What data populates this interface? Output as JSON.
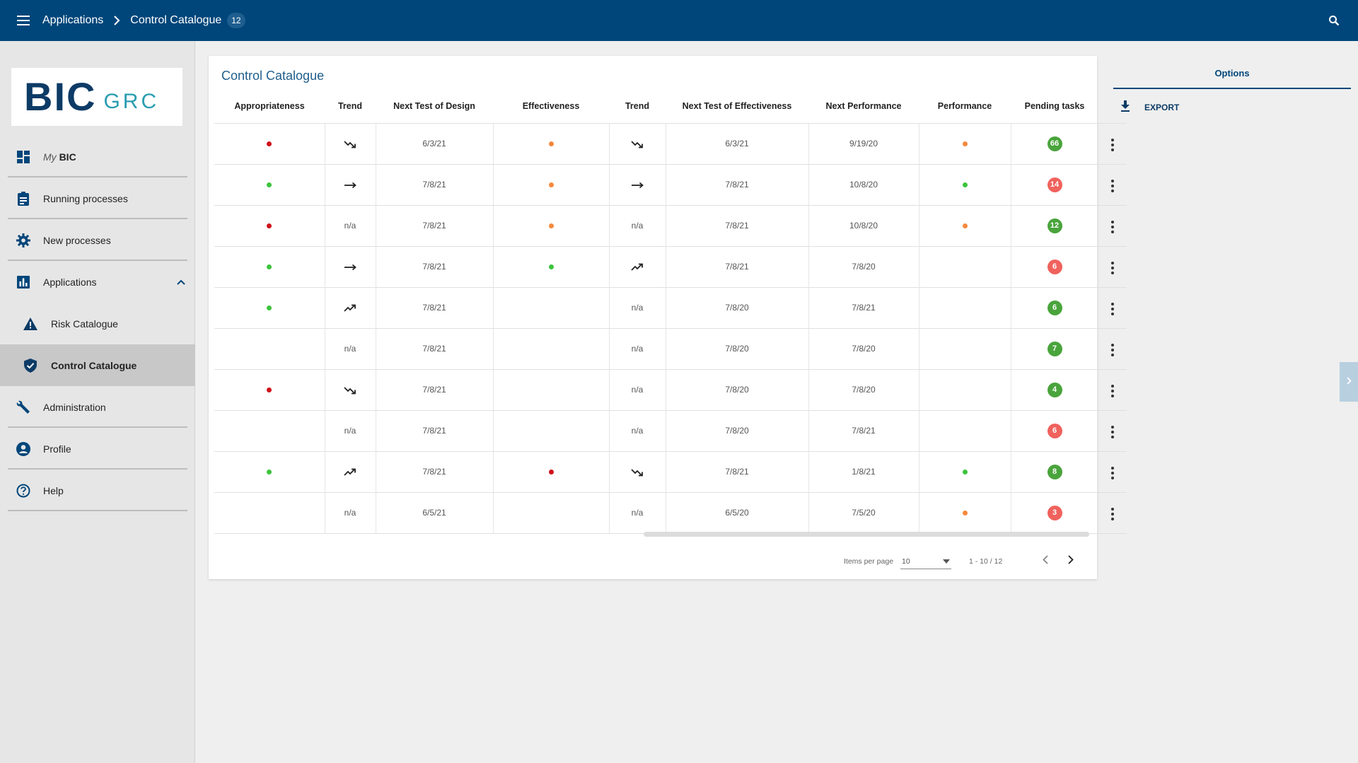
{
  "header": {
    "breadcrumb_root": "Applications",
    "breadcrumb_current": "Control Catalogue",
    "count": "12"
  },
  "logo": {
    "bic": "BIC",
    "grc": "GRC"
  },
  "sidebar": {
    "items": [
      {
        "prefix": "My",
        "label": "BIC",
        "icon": "dashboard-icon"
      },
      {
        "label": "Running processes",
        "icon": "clipboard-icon"
      },
      {
        "label": "New processes",
        "icon": "gear-icon"
      },
      {
        "label": "Applications",
        "icon": "bar-chart-icon"
      },
      {
        "label": "Risk Catalogue",
        "icon": "warning-triangle-icon"
      },
      {
        "label": "Control Catalogue",
        "icon": "shield-check-icon"
      },
      {
        "label": "Administration",
        "icon": "wrench-icon"
      },
      {
        "label": "Profile",
        "icon": "account-circle-icon"
      },
      {
        "label": "Help",
        "icon": "help-circle-icon"
      }
    ]
  },
  "card": {
    "title": "Control Catalogue",
    "columns": [
      "Appropriateness",
      "Trend",
      "Next Test of Design",
      "Effectiveness",
      "Trend",
      "Next Test of Effectiveness",
      "Next Performance",
      "Performance",
      "Pending tasks"
    ],
    "rows": [
      {
        "app": "red",
        "trend1": "down",
        "ntd": "6/3/21",
        "eff": "orange",
        "trend2": "down",
        "nte": "6/3/21",
        "np": "9/19/20",
        "perf": "orange",
        "tasks": "66",
        "tasks_color": "green"
      },
      {
        "app": "green",
        "trend1": "flat",
        "ntd": "7/8/21",
        "eff": "orange",
        "trend2": "flat",
        "nte": "7/8/21",
        "np": "10/8/20",
        "perf": "green",
        "tasks": "14",
        "tasks_color": "red"
      },
      {
        "app": "red",
        "trend1": "n/a",
        "ntd": "7/8/21",
        "eff": "orange",
        "trend2": "n/a",
        "nte": "7/8/21",
        "np": "10/8/20",
        "perf": "orange",
        "tasks": "12",
        "tasks_color": "green"
      },
      {
        "app": "green",
        "trend1": "flat",
        "ntd": "7/8/21",
        "eff": "green",
        "trend2": "up",
        "nte": "7/8/21",
        "np": "7/8/20",
        "perf": "",
        "tasks": "6",
        "tasks_color": "red"
      },
      {
        "app": "green",
        "trend1": "up",
        "ntd": "7/8/21",
        "eff": "",
        "trend2": "n/a",
        "nte": "7/8/20",
        "np": "7/8/21",
        "perf": "",
        "tasks": "6",
        "tasks_color": "green"
      },
      {
        "app": "",
        "trend1": "n/a",
        "ntd": "7/8/21",
        "eff": "",
        "trend2": "n/a",
        "nte": "7/8/20",
        "np": "7/8/20",
        "perf": "",
        "tasks": "7",
        "tasks_color": "green"
      },
      {
        "app": "red",
        "trend1": "down",
        "ntd": "7/8/21",
        "eff": "",
        "trend2": "n/a",
        "nte": "7/8/20",
        "np": "7/8/20",
        "perf": "",
        "tasks": "4",
        "tasks_color": "green"
      },
      {
        "app": "",
        "trend1": "n/a",
        "ntd": "7/8/21",
        "eff": "",
        "trend2": "n/a",
        "nte": "7/8/20",
        "np": "7/8/21",
        "perf": "",
        "tasks": "6",
        "tasks_color": "red"
      },
      {
        "app": "green",
        "trend1": "up",
        "ntd": "7/8/21",
        "eff": "red",
        "trend2": "down",
        "nte": "7/8/21",
        "np": "1/8/21",
        "perf": "green",
        "tasks": "8",
        "tasks_color": "green"
      },
      {
        "app": "",
        "trend1": "n/a",
        "ntd": "6/5/21",
        "eff": "",
        "trend2": "n/a",
        "nte": "6/5/20",
        "np": "7/5/20",
        "perf": "orange",
        "tasks": "3",
        "tasks_color": "red"
      }
    ]
  },
  "pagination": {
    "items_per_page_label": "Items per page",
    "items_per_page_value": "10",
    "range": "1 - 10 / 12"
  },
  "options": {
    "tab_label": "Options",
    "export_label": "EXPORT"
  },
  "colors": {
    "primary": "#00467a",
    "dot_red": "#d0101a",
    "dot_green": "#3cc43c",
    "dot_orange": "#f5893d",
    "badge_green": "#4aa43c",
    "badge_red": "#f0625d"
  }
}
